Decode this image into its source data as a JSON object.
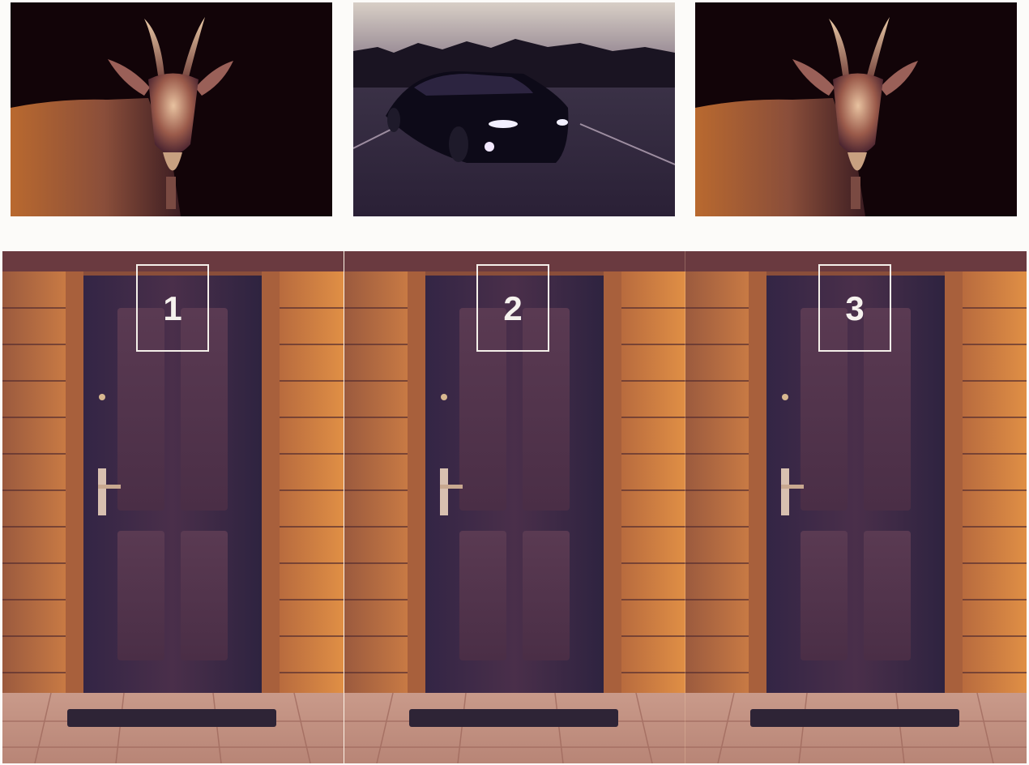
{
  "top_row": [
    {
      "subject": "goat"
    },
    {
      "subject": "car"
    },
    {
      "subject": "goat"
    }
  ],
  "doors": [
    {
      "number": "1"
    },
    {
      "number": "2"
    },
    {
      "number": "3"
    }
  ],
  "colors": {
    "wood": "#d88945",
    "door": "#3f2a4c",
    "dark_bg": "#120408",
    "number_box": "#f4efe9"
  }
}
